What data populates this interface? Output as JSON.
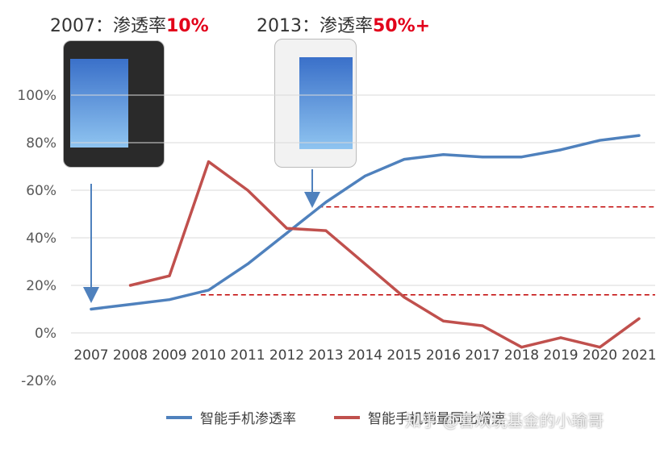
{
  "callouts": [
    {
      "prefix": "2007：渗透率",
      "highlight": "10%"
    },
    {
      "prefix": "2013：渗透率",
      "highlight": "50%+"
    }
  ],
  "watermark": "知乎 @喜欢玩基金的小瑜哥",
  "colors": {
    "penetration": "#4f81bd",
    "growth": "#c0504d",
    "reference": "#c00000",
    "highlight": "#e2001a"
  },
  "chart_data": {
    "type": "line",
    "x": [
      "2007",
      "2008",
      "2009",
      "2010",
      "2011",
      "2012",
      "2013",
      "2014",
      "2015",
      "2016",
      "2017",
      "2018",
      "2019",
      "2020",
      "2021"
    ],
    "ylim": [
      -20,
      100
    ],
    "yticks": [
      "-20%",
      "0%",
      "20%",
      "40%",
      "60%",
      "80%",
      "100%"
    ],
    "ytick_values": [
      -20,
      0,
      20,
      40,
      60,
      80,
      100
    ],
    "grid": true,
    "legend_position": "bottom",
    "series": [
      {
        "name": "智能手机渗透率",
        "values": [
          10,
          12,
          14,
          18,
          29,
          42,
          55,
          66,
          73,
          75,
          74,
          74,
          77,
          81,
          83
        ]
      },
      {
        "name": "智能手机销量同比增速",
        "values": [
          null,
          20,
          24,
          72,
          60,
          44,
          43,
          29,
          15,
          5,
          3,
          -6,
          -2,
          -6,
          6
        ]
      }
    ],
    "reference_lines": [
      53,
      16
    ]
  }
}
